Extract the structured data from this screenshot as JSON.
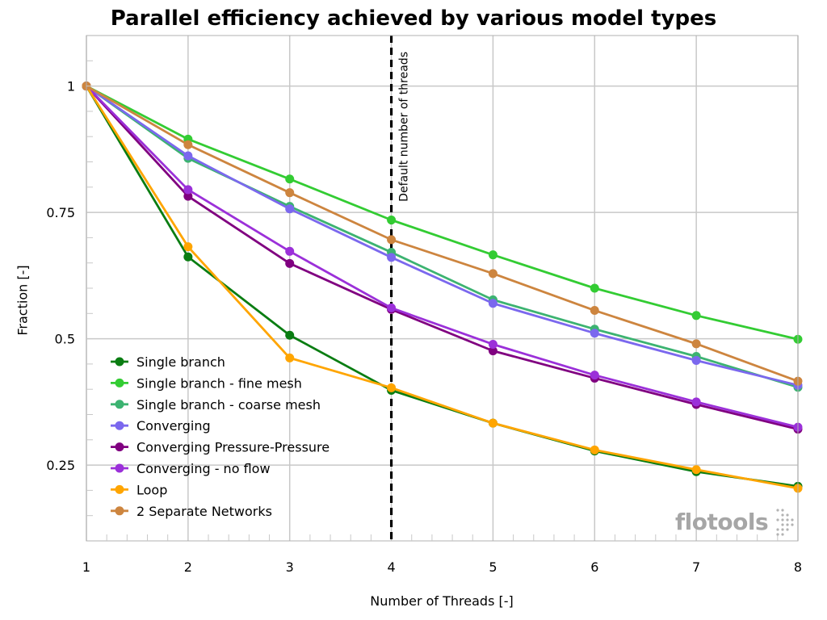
{
  "chart_data": {
    "type": "line",
    "title": "Parallel efficiency achieved by various model types",
    "xlabel": "Number of Threads [-]",
    "ylabel": "Fraction [-]",
    "xlim": [
      1,
      8
    ],
    "ylim": [
      0.1,
      1.1
    ],
    "x": [
      1,
      2,
      3,
      4,
      5,
      6,
      7,
      8
    ],
    "x_ticks": [
      "1",
      "2",
      "3",
      "4",
      "5",
      "6",
      "7",
      "8"
    ],
    "y_ticks": [
      {
        "value": 0.25,
        "label": "0.25"
      },
      {
        "value": 0.5,
        "label": "0.5"
      },
      {
        "value": 0.75,
        "label": "0.75"
      },
      {
        "value": 1,
        "label": "1"
      }
    ],
    "grid": true,
    "legend_position": "bottom-left",
    "annotation": {
      "x": 4,
      "label": "Default number of threads"
    },
    "series": [
      {
        "name": "Single branch",
        "color": "#0a7d12",
        "values": [
          1,
          0.662,
          0.507,
          0.398,
          0.333,
          0.278,
          0.237,
          0.208
        ]
      },
      {
        "name": "Single branch - fine mesh",
        "color": "#33cc33",
        "values": [
          1,
          0.895,
          0.816,
          0.735,
          0.666,
          0.6,
          0.546,
          0.499
        ]
      },
      {
        "name": "Single branch - coarse mesh",
        "color": "#3cb371",
        "values": [
          1,
          0.857,
          0.762,
          0.671,
          0.577,
          0.519,
          0.465,
          0.404
        ]
      },
      {
        "name": "Converging",
        "color": "#7b68ee",
        "values": [
          1,
          0.862,
          0.757,
          0.661,
          0.57,
          0.511,
          0.457,
          0.408
        ]
      },
      {
        "name": "Converging Pressure-Pressure",
        "color": "#800080",
        "values": [
          1,
          0.782,
          0.649,
          0.558,
          0.476,
          0.422,
          0.37,
          0.321
        ]
      },
      {
        "name": "Converging - no flow",
        "color": "#9b30d9",
        "values": [
          1,
          0.795,
          0.673,
          0.561,
          0.489,
          0.428,
          0.375,
          0.325
        ]
      },
      {
        "name": "Loop",
        "color": "#ffa500",
        "values": [
          1,
          0.682,
          0.462,
          0.403,
          0.333,
          0.28,
          0.241,
          0.204
        ]
      },
      {
        "name": "2 Separate Networks",
        "color": "#cd853f",
        "values": [
          1,
          0.884,
          0.789,
          0.696,
          0.629,
          0.556,
          0.49,
          0.416
        ]
      }
    ]
  },
  "logo": {
    "text": "flotools",
    "icon": "flotools-dot-icon"
  }
}
